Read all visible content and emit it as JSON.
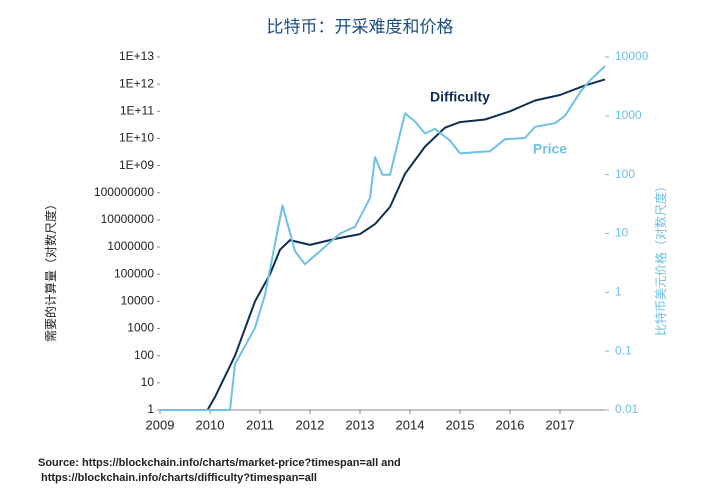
{
  "chart_data": {
    "type": "line",
    "title": "比特币：开采难度和价格",
    "ylabel": "需要的计算量（对数尺度）",
    "y2label": "比特币美元价格（对数尺度）",
    "source": [
      "Source: https://blockchain.info/charts/market-price?timespan=all and",
      "https://blockchain.info/charts/difficulty?timespan=all"
    ],
    "xlim": [
      2009,
      2017.9
    ],
    "xticks": [
      2009,
      2010,
      2011,
      2012,
      2013,
      2014,
      2015,
      2016,
      2017
    ],
    "ylog": true,
    "y2log": true,
    "ylim": [
      1,
      10000000000000
    ],
    "yticks": [
      1,
      10,
      100,
      1000,
      10000,
      100000,
      1000000,
      10000000,
      100000000,
      {
        "value": 1000000000,
        "label": "1E+09"
      },
      {
        "value": 10000000000,
        "label": "1E+10"
      },
      {
        "value": 100000000000,
        "label": "1E+11"
      },
      {
        "value": 1000000000000,
        "label": "1E+12"
      },
      {
        "value": 10000000000000,
        "label": "1E+13"
      }
    ],
    "y2lim": [
      0.01,
      10000
    ],
    "y2ticks": [
      0.01,
      0.1,
      1,
      10,
      100,
      1000,
      10000
    ],
    "series": [
      {
        "name": "Difficulty",
        "color": "#0d2f52",
        "x": [
          2009,
          2009.95,
          2010.1,
          2010.5,
          2010.7,
          2010.9,
          2011.2,
          2011.4,
          2011.6,
          2012.0,
          2012.5,
          2013.0,
          2013.3,
          2013.6,
          2013.9,
          2014.3,
          2014.7,
          2015.0,
          2015.5,
          2016.0,
          2016.5,
          2017.0,
          2017.5,
          2017.9
        ],
        "values": [
          1,
          1,
          3,
          100,
          1000,
          10000,
          100000,
          800000,
          1800000,
          1200000,
          2000000,
          3000000,
          7000000,
          30000000,
          500000000,
          5000000000,
          25000000000,
          40000000000,
          50000000000,
          100000000000,
          250000000000,
          400000000000,
          900000000000,
          1500000000000
        ]
      },
      {
        "name": "Price",
        "color": "#6ec1e4",
        "axis": "y2",
        "x": [
          2009,
          2010.4,
          2010.5,
          2010.9,
          2011.1,
          2011.45,
          2011.7,
          2011.9,
          2012.2,
          2012.6,
          2012.9,
          2013.2,
          2013.3,
          2013.45,
          2013.6,
          2013.9,
          2014.1,
          2014.3,
          2014.5,
          2014.8,
          2015.0,
          2015.3,
          2015.6,
          2015.9,
          2016.3,
          2016.5,
          2016.9,
          2017.1,
          2017.4,
          2017.6,
          2017.9
        ],
        "values": [
          0.01,
          0.01,
          0.06,
          0.25,
          0.9,
          30,
          5,
          3,
          5,
          10,
          13,
          40,
          200,
          100,
          100,
          1100,
          800,
          500,
          600,
          380,
          230,
          240,
          250,
          400,
          420,
          650,
          750,
          1000,
          2500,
          4000,
          7000
        ]
      }
    ]
  }
}
